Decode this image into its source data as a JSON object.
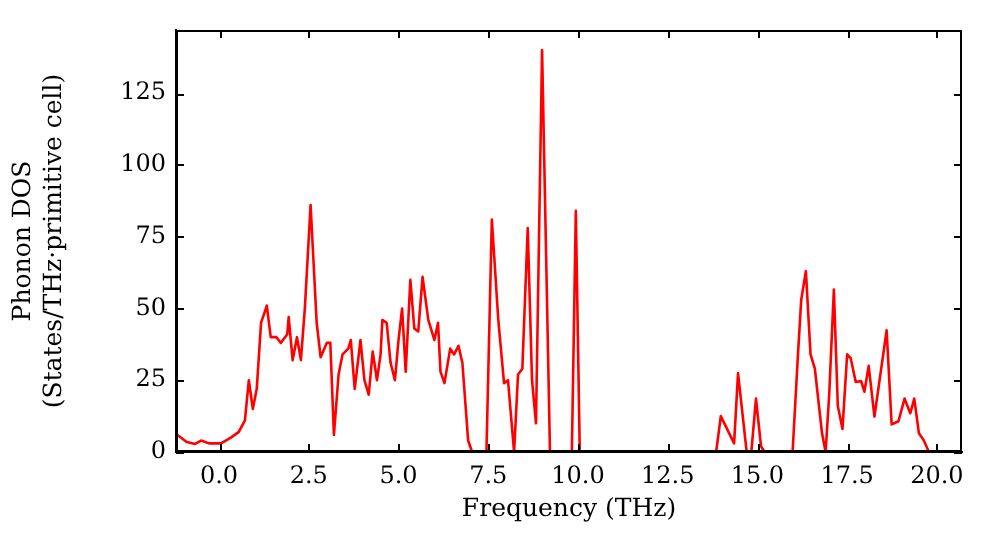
{
  "chart_data": {
    "type": "line",
    "xlabel": "Frequency (THz)",
    "ylabel": "Phonon DOS\n(States/THz·primitive cell)",
    "xlim": [
      -1.2,
      20.7
    ],
    "ylim": [
      0,
      147
    ],
    "xticks": [
      {
        "value": 0,
        "label": "0.0"
      },
      {
        "value": 2.5,
        "label": "2.5"
      },
      {
        "value": 5,
        "label": "5.0"
      },
      {
        "value": 7.5,
        "label": "7.5"
      },
      {
        "value": 10,
        "label": "10.0"
      },
      {
        "value": 12.5,
        "label": "12.5"
      },
      {
        "value": 15,
        "label": "15.0"
      },
      {
        "value": 17.5,
        "label": "17.5"
      },
      {
        "value": 20,
        "label": "20.0"
      }
    ],
    "yticks": [
      0,
      25,
      50,
      75,
      100,
      125
    ],
    "grid": false,
    "legend": false,
    "marker": "none",
    "line_style": "solid",
    "series": [
      {
        "color": "#ff0000",
        "x": [
          -1.17,
          -0.9,
          -0.67,
          -0.5,
          -0.28,
          0.05,
          0.33,
          0.55,
          0.72,
          0.83,
          0.94,
          1.05,
          1.17,
          1.33,
          1.44,
          1.6,
          1.72,
          1.9,
          1.94,
          2.05,
          2.17,
          2.28,
          2.39,
          2.55,
          2.72,
          2.83,
          3.0,
          3.1,
          3.2,
          3.33,
          3.44,
          3.6,
          3.67,
          3.78,
          3.94,
          4.05,
          4.17,
          4.28,
          4.4,
          4.5,
          4.55,
          4.67,
          4.78,
          4.9,
          5.0,
          5.1,
          5.2,
          5.33,
          5.44,
          5.55,
          5.67,
          5.83,
          6.0,
          6.1,
          6.17,
          6.28,
          6.44,
          6.55,
          6.67,
          6.78,
          6.94,
          7.05,
          7.45,
          7.6,
          7.78,
          7.94,
          8.05,
          8.22,
          8.33,
          8.45,
          8.6,
          8.72,
          8.83,
          9.0,
          9.22,
          9.83,
          9.94,
          10.05,
          13.85,
          13.98,
          14.35,
          14.46,
          14.7,
          14.83,
          14.96,
          15.1,
          15.2,
          15.98,
          16.13,
          16.22,
          16.35,
          16.48,
          16.6,
          16.8,
          16.9,
          17.0,
          17.13,
          17.24,
          17.37,
          17.5,
          17.6,
          17.74,
          17.89,
          17.98,
          18.1,
          18.26,
          18.6,
          18.74,
          18.93,
          19.1,
          19.26,
          19.37,
          19.5,
          19.63,
          19.78
        ],
        "values": [
          6,
          3.5,
          2.8,
          4,
          3,
          3,
          5,
          7,
          11,
          25,
          15,
          22,
          45,
          51,
          40,
          40,
          38,
          41,
          47,
          32,
          40,
          32,
          50,
          86,
          45,
          33,
          38,
          38,
          6,
          27,
          34,
          36,
          39,
          22,
          39,
          25,
          20,
          35,
          25,
          34,
          46,
          45,
          31,
          25,
          39,
          50,
          28,
          60,
          43,
          42,
          61,
          46,
          39,
          45,
          28,
          24,
          36,
          34,
          37,
          31,
          4,
          0,
          0,
          81,
          46,
          24,
          25,
          0,
          27,
          29,
          78,
          25,
          10,
          140,
          0,
          0,
          84,
          0,
          0,
          12.5,
          3,
          27.5,
          0,
          0,
          18.6,
          2,
          0,
          0,
          34,
          53,
          63,
          34,
          29,
          6.5,
          0,
          20,
          56.6,
          16,
          8,
          34,
          32.6,
          24.4,
          24.7,
          21,
          30,
          12.3,
          42.4,
          9.6,
          10.7,
          18.6,
          13.5,
          18.6,
          6.5,
          4.2,
          0
        ]
      }
    ]
  }
}
